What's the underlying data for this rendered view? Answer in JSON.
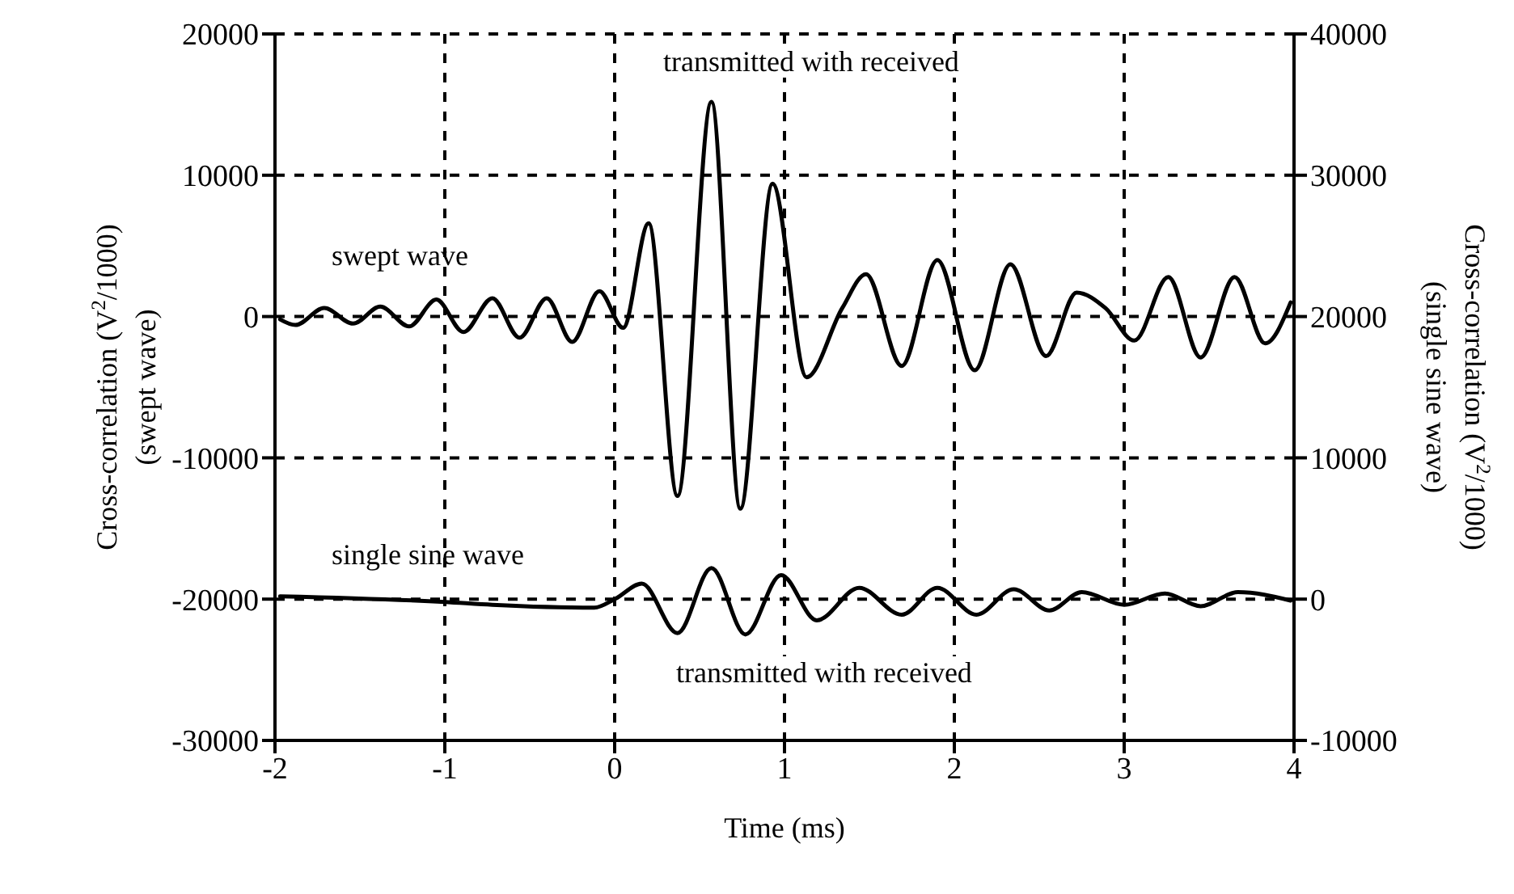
{
  "chart_data": {
    "type": "line",
    "xlabel": "Time (ms)",
    "ylabel": "Cross-correlation (V$^{2}$/1000)\n(swept wave)",
    "y2label": "Cross-correlation (V$^{2}$/1000)\n(single sine wave)",
    "annotations": [
      "transmitted with received",
      "transmitted with received"
    ],
    "xlim": [
      -2,
      4
    ],
    "xticks": [
      -2,
      -1,
      0,
      1,
      2,
      3,
      4
    ],
    "ylim": [
      -30000,
      20000
    ],
    "yticks": [
      -30000,
      -20000,
      -10000,
      0,
      10000,
      20000
    ],
    "y2lim": [
      -10000,
      40000
    ],
    "y2ticks": [
      -10000,
      0,
      10000,
      20000,
      30000,
      40000
    ],
    "grid": true,
    "marker": "none",
    "line_style": "solid",
    "series": [
      {
        "name": "swept wave",
        "color": "#000000",
        "axis": "y",
        "x": [
          -1.97,
          -1.88,
          -1.71,
          -1.54,
          -1.38,
          -1.21,
          -1.05,
          -0.89,
          -0.72,
          -0.56,
          -0.4,
          -0.25,
          -0.09,
          0.05,
          0.2,
          0.37,
          0.57,
          0.74,
          0.93,
          1.13,
          1.34,
          1.48,
          1.69,
          1.9,
          2.12,
          2.33,
          2.54,
          2.72,
          2.89,
          3.06,
          3.26,
          3.45,
          3.65,
          3.83,
          3.98
        ],
        "values": [
          -200,
          -600,
          600,
          -500,
          700,
          -700,
          1200,
          -1100,
          1300,
          -1500,
          1300,
          -1800,
          1800,
          -800,
          6600,
          -12700,
          15200,
          -13600,
          9400,
          -4300,
          600,
          3000,
          -3500,
          4000,
          -3800,
          3700,
          -2800,
          1700,
          600,
          -1700,
          2800,
          -2900,
          2800,
          -1900,
          1000
        ]
      },
      {
        "name": "single sine wave",
        "color": "#000000",
        "axis": "y2",
        "x": [
          -1.97,
          -1.0,
          -0.72,
          -0.12,
          0,
          0.16,
          0.37,
          0.57,
          0.77,
          0.98,
          1.19,
          1.44,
          1.69,
          1.9,
          2.13,
          2.35,
          2.56,
          2.75,
          3.0,
          3.24,
          3.45,
          3.67,
          3.98
        ],
        "values": [
          200,
          -200,
          -400,
          -600,
          0,
          1100,
          -2400,
          2200,
          -2500,
          1700,
          -1500,
          800,
          -1100,
          800,
          -1100,
          700,
          -800,
          500,
          -400,
          400,
          -500,
          500,
          -100
        ]
      }
    ]
  }
}
